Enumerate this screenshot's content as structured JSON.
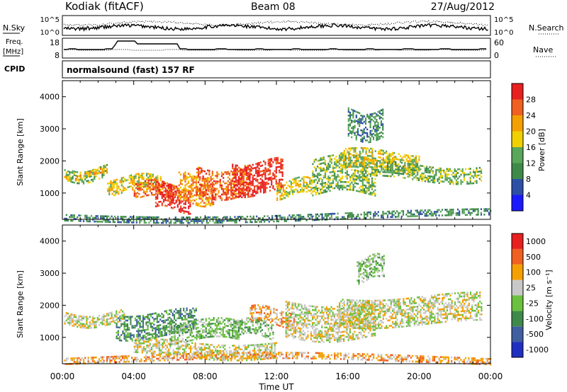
{
  "header": {
    "station": "Kodiak (fitACF)",
    "beam": "Beam 08",
    "date": "27/Aug/2012"
  },
  "strips": {
    "nsky_label": "N.Sky",
    "nsky_ticks": [
      "10^5",
      "10^0"
    ],
    "nsearch_label": "N.Search",
    "nsearch_ticks": [
      "10^5",
      "10^0"
    ],
    "freq_label": [
      "Freq.",
      "[MHz]"
    ],
    "freq_ticks": [
      "18",
      "8"
    ],
    "nave_label": "Nave",
    "nave_ticks": [
      "60",
      "0"
    ],
    "cpid_label": "CPID",
    "cpid_text": "normalsound (fast) 157 RF"
  },
  "chart_data": [
    {
      "type": "heatmap",
      "panel": "power",
      "ylabel": "Slant Range [km]",
      "ylim": [
        180,
        4500
      ],
      "yticks": [
        1000,
        2000,
        3000,
        4000
      ],
      "xlabel": "Time UT",
      "xlim_hours": [
        0,
        24
      ],
      "xticks": [
        "00:00",
        "04:00",
        "08:00",
        "12:00",
        "16:00",
        "20:00",
        "00:00"
      ],
      "colorbar": {
        "label": "Power [dB]",
        "ticks": [
          "4",
          "8",
          "12",
          "16",
          "20",
          "24",
          "28"
        ],
        "colors": [
          "#1a1aff",
          "#2d4fa6",
          "#3f8a4a",
          "#5aa65a",
          "#f0d000",
          "#f4a000",
          "#f06020",
          "#e82020"
        ]
      },
      "bands": [
        {
          "t0": 0.1,
          "t1": 2.5,
          "r0": 1400,
          "r1": 1800,
          "level": 3
        },
        {
          "t0": 0.1,
          "t1": 2.5,
          "r0": 1500,
          "r1": 1650,
          "level": 5
        },
        {
          "t0": 2.5,
          "t1": 5.5,
          "r0": 1000,
          "r1": 1500,
          "level": 4
        },
        {
          "t0": 4.0,
          "t1": 6.5,
          "r0": 800,
          "r1": 1300,
          "level": 6
        },
        {
          "t0": 5.2,
          "t1": 7.2,
          "r0": 500,
          "r1": 1200,
          "level": 7
        },
        {
          "t0": 6.5,
          "t1": 8.5,
          "r0": 700,
          "r1": 1600,
          "level": 5
        },
        {
          "t0": 7.5,
          "t1": 10.5,
          "r0": 900,
          "r1": 1800,
          "level": 6
        },
        {
          "t0": 9.5,
          "t1": 12.3,
          "r0": 1000,
          "r1": 2000,
          "level": 7
        },
        {
          "t0": 12.0,
          "t1": 14.0,
          "r0": 900,
          "r1": 1400,
          "level": 4
        },
        {
          "t0": 14.0,
          "t1": 17.5,
          "r0": 1000,
          "r1": 2100,
          "level": 3
        },
        {
          "t0": 15.5,
          "t1": 20.0,
          "r0": 1700,
          "r1": 2300,
          "level": 4
        },
        {
          "t0": 17.5,
          "t1": 23.5,
          "r0": 1400,
          "r1": 1900,
          "level": 3
        },
        {
          "t0": 16.0,
          "t1": 18.0,
          "r0": 2700,
          "r1": 3600,
          "level": 2
        },
        {
          "t0": 0.1,
          "t1": 24.0,
          "r0": 200,
          "r1": 400,
          "level": 2
        }
      ]
    },
    {
      "type": "heatmap",
      "panel": "velocity",
      "ylabel": "Slant Range [km]",
      "ylim": [
        180,
        4500
      ],
      "yticks": [
        1000,
        2000,
        3000,
        4000
      ],
      "xlabel": "Time UT",
      "xlim_hours": [
        0,
        24
      ],
      "xticks": [
        "00:00",
        "04:00",
        "08:00",
        "12:00",
        "16:00",
        "20:00",
        "00:00"
      ],
      "colorbar": {
        "label": "Velocity [m s⁻¹]",
        "ticks": [
          "1000",
          "500",
          "100",
          "25",
          "-25",
          "-100",
          "-500",
          "-1000"
        ],
        "colors": [
          "#2030c0",
          "#3f5fa0",
          "#3f8a4a",
          "#6cc040",
          "#c8c8c8",
          "#f4a000",
          "#f06020",
          "#e82020"
        ]
      },
      "bands": [
        {
          "t0": 0.1,
          "t1": 3.5,
          "r0": 1400,
          "r1": 1800,
          "level": 4
        },
        {
          "t0": 3.0,
          "t1": 7.5,
          "r0": 1000,
          "r1": 1800,
          "level": 2
        },
        {
          "t0": 6.0,
          "t1": 10.0,
          "r0": 900,
          "r1": 1500,
          "level": 3
        },
        {
          "t0": 9.5,
          "t1": 11.8,
          "r0": 1000,
          "r1": 1500,
          "level": 3
        },
        {
          "t0": 10.5,
          "t1": 13.0,
          "r0": 1400,
          "r1": 1900,
          "level": 5
        },
        {
          "t0": 4.0,
          "t1": 12.0,
          "r0": 400,
          "r1": 900,
          "level": 4
        },
        {
          "t0": 12.5,
          "t1": 17.5,
          "r0": 1000,
          "r1": 2100,
          "level": 4
        },
        {
          "t0": 15.5,
          "t1": 23.5,
          "r0": 1400,
          "r1": 2300,
          "level": 4
        },
        {
          "t0": 16.5,
          "t1": 18.0,
          "r0": 2800,
          "r1": 3500,
          "level": 3
        },
        {
          "t0": 0.1,
          "t1": 24.0,
          "r0": 200,
          "r1": 420,
          "level": 5
        }
      ]
    }
  ]
}
